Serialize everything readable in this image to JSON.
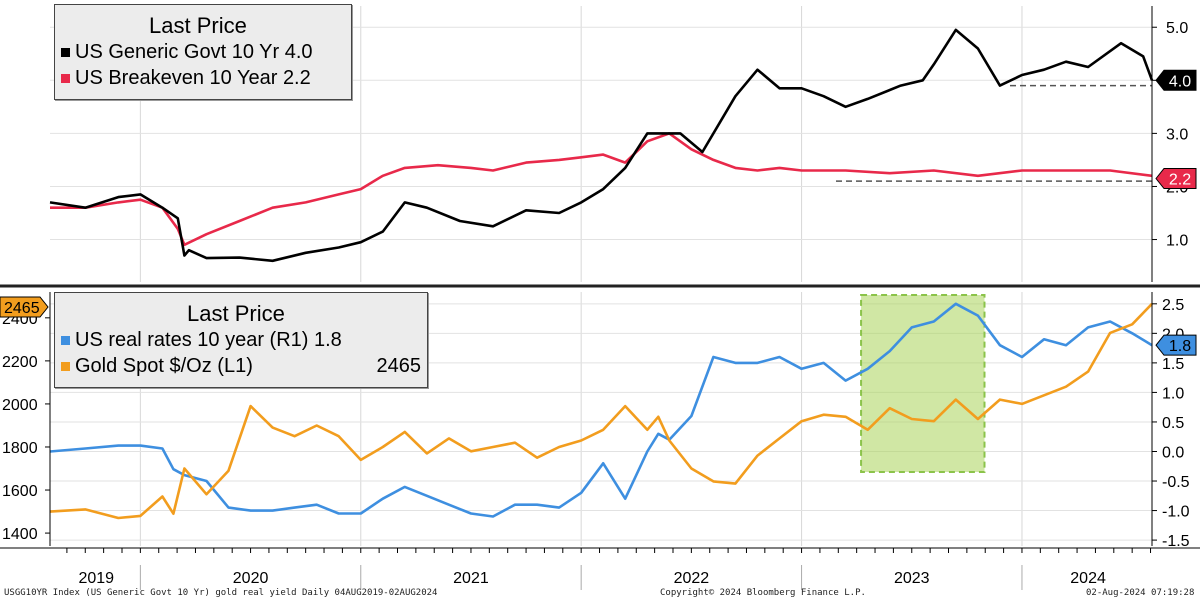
{
  "footer": {
    "left": "USGG10YR Index (US Generic Govt 10 Yr) gold real yield  Daily 04AUG2019-02AUG2024",
    "center": "Copyright© 2024 Bloomberg Finance L.P.",
    "right": "02-Aug-2024 07:19:28"
  },
  "chart_data": [
    {
      "type": "line",
      "legend_title": "Last Price",
      "legend_placement": "top-left",
      "x_labels": [
        "2019",
        "2020",
        "2021",
        "2022",
        "2023",
        "2024"
      ],
      "ylabel_right_ticks": [
        "1.0",
        "2.0",
        "3.0",
        "4.0",
        "5.0"
      ],
      "ylim": [
        0.2,
        5.4
      ],
      "series": [
        {
          "name": "US Generic Govt 10 Yr",
          "last": "4.0",
          "color": "#000000",
          "x": [
            2019.59,
            2019.75,
            2019.9,
            2020.0,
            2020.1,
            2020.17,
            2020.2,
            2020.22,
            2020.3,
            2020.45,
            2020.6,
            2020.75,
            2020.9,
            2021.0,
            2021.1,
            2021.2,
            2021.3,
            2021.45,
            2021.6,
            2021.75,
            2021.9,
            2022.0,
            2022.1,
            2022.2,
            2022.3,
            2022.45,
            2022.55,
            2022.7,
            2022.8,
            2022.9,
            2023.0,
            2023.1,
            2023.2,
            2023.3,
            2023.45,
            2023.55,
            2023.6,
            2023.7,
            2023.8,
            2023.9,
            2024.0,
            2024.1,
            2024.2,
            2024.3,
            2024.45,
            2024.55,
            2024.59
          ],
          "y": [
            1.7,
            1.6,
            1.8,
            1.85,
            1.6,
            1.4,
            0.7,
            0.8,
            0.65,
            0.66,
            0.6,
            0.75,
            0.85,
            0.95,
            1.15,
            1.7,
            1.6,
            1.35,
            1.25,
            1.55,
            1.5,
            1.7,
            1.95,
            2.35,
            3.0,
            3.0,
            2.65,
            3.7,
            4.2,
            3.85,
            3.85,
            3.7,
            3.5,
            3.65,
            3.9,
            4.0,
            4.3,
            4.95,
            4.6,
            3.9,
            4.1,
            4.2,
            4.35,
            4.25,
            4.7,
            4.45,
            4.0
          ]
        },
        {
          "name": "US Breakeven 10 Year",
          "last": "2.2",
          "color": "#e8294a",
          "x": [
            2019.59,
            2019.75,
            2019.9,
            2020.0,
            2020.1,
            2020.17,
            2020.2,
            2020.3,
            2020.45,
            2020.6,
            2020.75,
            2020.9,
            2021.0,
            2021.1,
            2021.2,
            2021.35,
            2021.5,
            2021.6,
            2021.75,
            2021.9,
            2022.0,
            2022.1,
            2022.2,
            2022.3,
            2022.4,
            2022.5,
            2022.6,
            2022.7,
            2022.8,
            2022.9,
            2023.0,
            2023.2,
            2023.4,
            2023.6,
            2023.8,
            2024.0,
            2024.2,
            2024.4,
            2024.59
          ],
          "y": [
            1.6,
            1.6,
            1.7,
            1.75,
            1.6,
            1.2,
            0.9,
            1.1,
            1.35,
            1.6,
            1.7,
            1.85,
            1.95,
            2.2,
            2.35,
            2.4,
            2.35,
            2.3,
            2.45,
            2.5,
            2.55,
            2.6,
            2.45,
            2.85,
            3.0,
            2.7,
            2.5,
            2.35,
            2.3,
            2.35,
            2.3,
            2.3,
            2.25,
            2.3,
            2.2,
            2.3,
            2.3,
            2.3,
            2.2
          ]
        }
      ],
      "reference_levels": [
        3.9,
        2.1
      ]
    },
    {
      "type": "line",
      "legend_title": "Last Price",
      "legend_placement": "top-left",
      "x_labels": [
        "2019",
        "2020",
        "2021",
        "2022",
        "2023",
        "2024"
      ],
      "yleft_ticks": [
        "1400",
        "1600",
        "1800",
        "2000",
        "2200",
        "2400"
      ],
      "yleft_lim": [
        1340,
        2520
      ],
      "yright_ticks": [
        "-1.5",
        "-1.0",
        "-0.5",
        "0.0",
        "0.5",
        "1.0",
        "1.5",
        "2.0",
        "2.5"
      ],
      "yright_lim": [
        -1.6,
        2.7
      ],
      "series": [
        {
          "name": "US real rates 10 year  (R1)",
          "last": "1.8",
          "color": "#3e8fe0",
          "axis": "right",
          "x": [
            2019.59,
            2019.75,
            2019.9,
            2020.0,
            2020.1,
            2020.15,
            2020.2,
            2020.3,
            2020.4,
            2020.5,
            2020.6,
            2020.7,
            2020.8,
            2020.9,
            2021.0,
            2021.1,
            2021.2,
            2021.3,
            2021.4,
            2021.5,
            2021.6,
            2021.7,
            2021.8,
            2021.9,
            2022.0,
            2022.1,
            2022.2,
            2022.3,
            2022.35,
            2022.4,
            2022.5,
            2022.6,
            2022.7,
            2022.8,
            2022.9,
            2023.0,
            2023.1,
            2023.2,
            2023.3,
            2023.4,
            2023.5,
            2023.6,
            2023.7,
            2023.8,
            2023.9,
            2024.0,
            2024.1,
            2024.2,
            2024.3,
            2024.4,
            2024.5,
            2024.59
          ],
          "y": [
            0.0,
            0.05,
            0.1,
            0.1,
            0.05,
            -0.3,
            -0.4,
            -0.5,
            -0.95,
            -1.0,
            -1.0,
            -0.95,
            -0.9,
            -1.05,
            -1.05,
            -0.8,
            -0.6,
            -0.75,
            -0.9,
            -1.05,
            -1.1,
            -0.9,
            -0.9,
            -0.95,
            -0.7,
            -0.2,
            -0.8,
            0.0,
            0.3,
            0.2,
            0.6,
            1.6,
            1.5,
            1.5,
            1.6,
            1.4,
            1.5,
            1.2,
            1.4,
            1.7,
            2.1,
            2.2,
            2.5,
            2.3,
            1.8,
            1.6,
            1.9,
            1.8,
            2.1,
            2.2,
            2.0,
            1.8
          ]
        },
        {
          "name": "Gold Spot $/Oz  (L1)",
          "last": "2465",
          "color": "#f29d1e",
          "axis": "left",
          "x": [
            2019.59,
            2019.75,
            2019.9,
            2020.0,
            2020.1,
            2020.15,
            2020.2,
            2020.3,
            2020.4,
            2020.5,
            2020.6,
            2020.7,
            2020.8,
            2020.9,
            2021.0,
            2021.1,
            2021.2,
            2021.3,
            2021.4,
            2021.5,
            2021.6,
            2021.7,
            2021.8,
            2021.9,
            2022.0,
            2022.1,
            2022.2,
            2022.3,
            2022.35,
            2022.4,
            2022.5,
            2022.6,
            2022.7,
            2022.8,
            2022.9,
            2023.0,
            2023.1,
            2023.2,
            2023.3,
            2023.4,
            2023.5,
            2023.6,
            2023.7,
            2023.8,
            2023.9,
            2024.0,
            2024.1,
            2024.2,
            2024.3,
            2024.4,
            2024.5,
            2024.59
          ],
          "y": [
            1500,
            1510,
            1470,
            1480,
            1570,
            1490,
            1700,
            1580,
            1690,
            1990,
            1890,
            1850,
            1900,
            1850,
            1740,
            1800,
            1870,
            1770,
            1840,
            1780,
            1800,
            1820,
            1750,
            1800,
            1830,
            1880,
            1990,
            1880,
            1940,
            1830,
            1700,
            1640,
            1630,
            1760,
            1840,
            1920,
            1950,
            1940,
            1880,
            1980,
            1930,
            1920,
            2020,
            1930,
            2020,
            2000,
            2040,
            2080,
            2150,
            2330,
            2370,
            2465
          ]
        }
      ],
      "highlight": {
        "x_start": 2023.27,
        "x_end": 2023.83,
        "color": "#a9d45a"
      }
    }
  ]
}
